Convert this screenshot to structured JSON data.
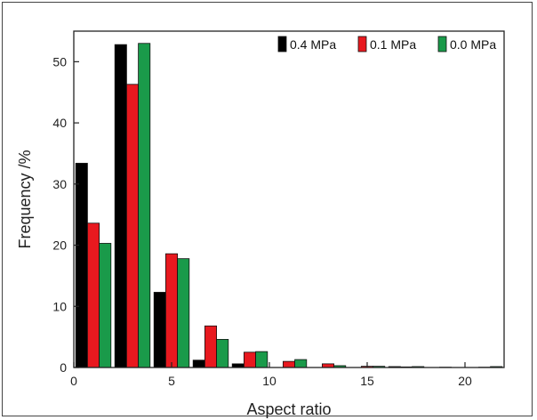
{
  "chart_data": {
    "type": "bar",
    "xlabel": "Aspect ratio",
    "ylabel": "Frequency /%",
    "xlim": [
      0,
      22
    ],
    "ylim": [
      0,
      55
    ],
    "xticks": [
      0,
      5,
      10,
      15,
      20
    ],
    "yticks": [
      0,
      10,
      20,
      30,
      40,
      50
    ],
    "x": [
      1,
      3,
      5,
      7,
      9,
      11,
      13,
      15,
      17,
      19,
      21
    ],
    "series": [
      {
        "name": "0.4 MPa",
        "color": "#000000",
        "values": [
          33.4,
          52.8,
          12.3,
          1.2,
          0.6,
          0.0,
          0.0,
          0.0,
          0.15,
          0.0,
          0.0
        ]
      },
      {
        "name": "0.1 MPa",
        "color": "#e8191f",
        "values": [
          23.6,
          46.3,
          18.6,
          6.8,
          2.5,
          1.0,
          0.6,
          0.2,
          0.1,
          0.05,
          0.05
        ]
      },
      {
        "name": "0.0 MPa",
        "color": "#1a9a4a",
        "values": [
          20.3,
          53.0,
          17.8,
          4.6,
          2.6,
          1.3,
          0.3,
          0.2,
          0.15,
          0.0,
          0.15
        ]
      }
    ],
    "legend_position": "top-right",
    "grid": false
  }
}
